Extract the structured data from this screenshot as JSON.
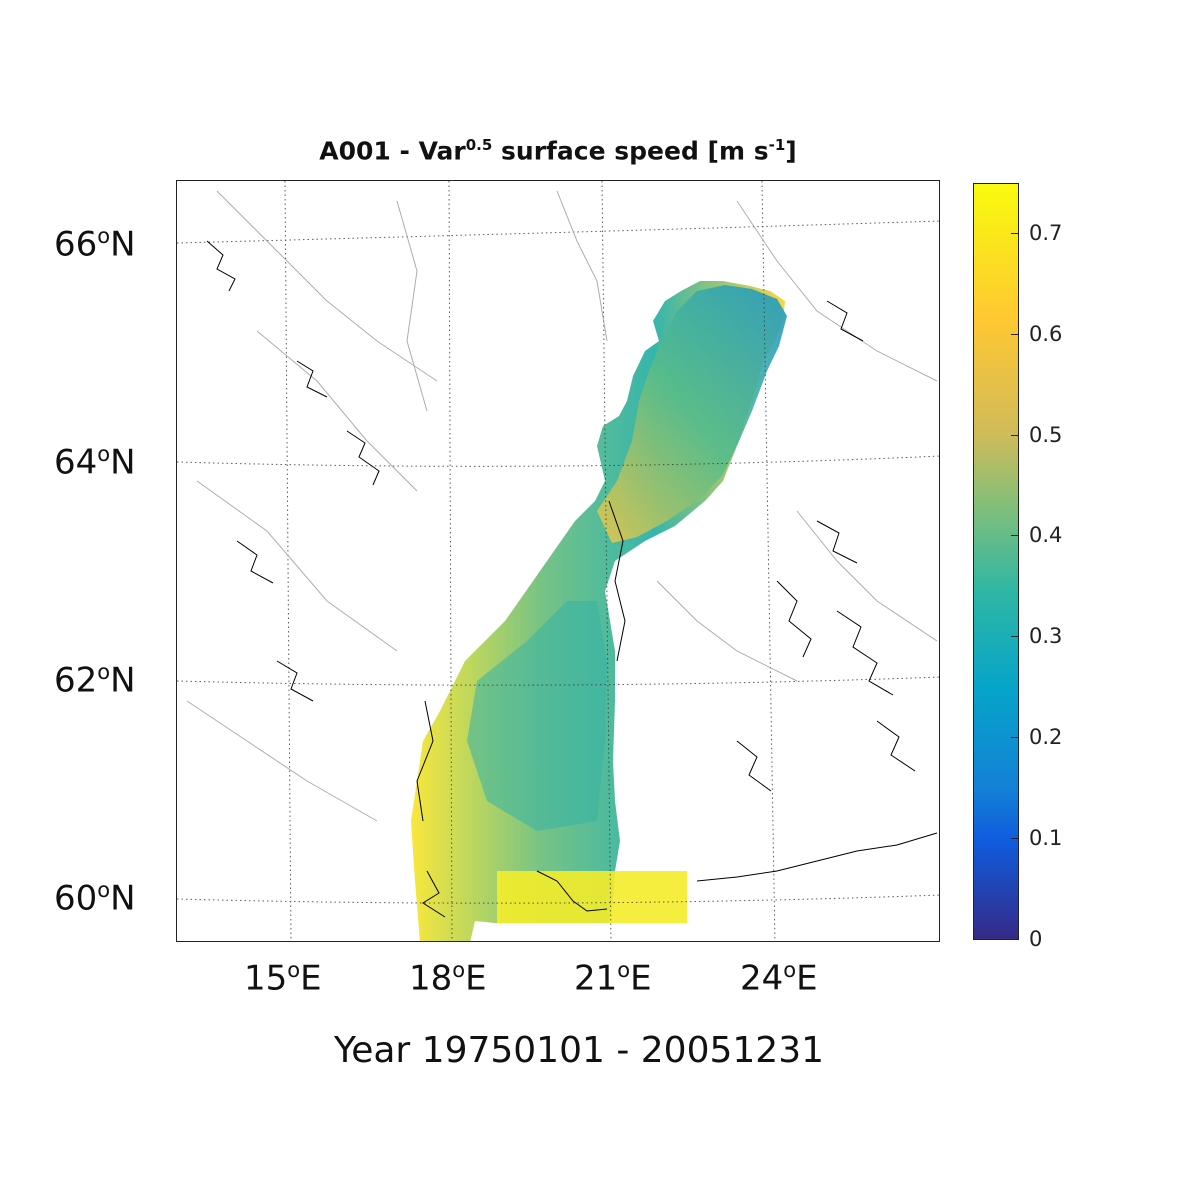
{
  "title": {
    "prefix": "A001 - Var",
    "sup": "0.5",
    "middle": " surface speed [m s",
    "unit_sup": "-1",
    "suffix": "]"
  },
  "xlabel": "Year 19750101 - 20051231",
  "lat_labels": [
    {
      "deg": "66",
      "unit": "o",
      "hemi": "N"
    },
    {
      "deg": "64",
      "unit": "o",
      "hemi": "N"
    },
    {
      "deg": "62",
      "unit": "o",
      "hemi": "N"
    },
    {
      "deg": "60",
      "unit": "o",
      "hemi": "N"
    }
  ],
  "lon_labels": [
    {
      "deg": "15",
      "unit": "o",
      "hemi": "E"
    },
    {
      "deg": "18",
      "unit": "o",
      "hemi": "E"
    },
    {
      "deg": "21",
      "unit": "o",
      "hemi": "E"
    },
    {
      "deg": "24",
      "unit": "o",
      "hemi": "E"
    }
  ],
  "colorbar": {
    "ticks": [
      "0",
      "0.1",
      "0.2",
      "0.3",
      "0.4",
      "0.5",
      "0.6",
      "0.7"
    ],
    "colormap": "parula",
    "min": 0,
    "max": 0.75
  },
  "colors": {
    "low": "#352a87",
    "mid": "#2eb7a4",
    "high": "#f9fb0e"
  }
}
